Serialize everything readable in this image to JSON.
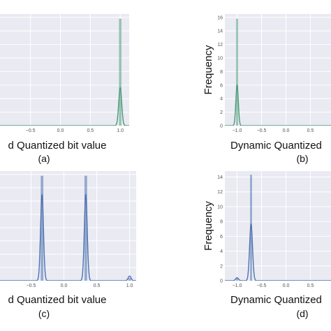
{
  "chart_data": [
    {
      "type": "bar",
      "panel": "a",
      "caption": "(a)",
      "xlabel": "d Quantized bit value",
      "ylabel": "",
      "xlim": [
        -1.15,
        1.15
      ],
      "ylim": [
        0,
        16.5
      ],
      "xticks": [
        -0.5,
        0.0,
        0.5,
        1.0
      ],
      "xtick_labels": [
        "−0.5",
        "0.0",
        "0.5",
        "1.0"
      ],
      "yticks": [],
      "ytick_labels": [],
      "color": "#4a9a78",
      "grid": true,
      "histogram": [
        {
          "x": 1.0,
          "height": 15.8,
          "width": 0.04
        }
      ],
      "kde": {
        "peaks": [
          {
            "center": 1.0,
            "height": 5.6,
            "width": 0.025
          }
        ]
      }
    },
    {
      "type": "bar",
      "panel": "b",
      "caption": "(b)",
      "xlabel": "Dynamic Quantized",
      "ylabel": "Frequency",
      "xlim": [
        -1.25,
        1.15
      ],
      "ylim": [
        0,
        16.5
      ],
      "xticks": [
        -1.0,
        -0.5,
        0.0,
        0.5
      ],
      "xtick_labels": [
        "−1.0",
        "−0.5",
        "0.0",
        "0.5"
      ],
      "yticks": [
        0,
        2,
        4,
        6,
        8,
        10,
        12,
        14,
        16
      ],
      "ytick_labels": [
        "0",
        "2",
        "4",
        "6",
        "8",
        "10",
        "12",
        "14",
        "16"
      ],
      "color": "#4a9a78",
      "grid": true,
      "histogram": [
        {
          "x": -1.0,
          "height": 15.8,
          "width": 0.04
        }
      ],
      "kde": {
        "peaks": [
          {
            "center": -1.0,
            "height": 6.0,
            "width": 0.025
          }
        ]
      }
    },
    {
      "type": "bar",
      "panel": "c",
      "caption": "(c)",
      "xlabel": "d Quantized bit value",
      "ylabel": "",
      "xlim": [
        -1.1,
        1.1
      ],
      "ylim": [
        0,
        16.5
      ],
      "xticks": [
        -0.5,
        0.0,
        0.5,
        1.0
      ],
      "xtick_labels": [
        "−0.5",
        "0.0",
        "0.5",
        "1.0"
      ],
      "yticks": [],
      "ytick_labels": [],
      "color": "#4c72b0",
      "grid": true,
      "histogram": [
        {
          "x": -0.333,
          "height": 15.8,
          "width": 0.04
        },
        {
          "x": 0.333,
          "height": 15.8,
          "width": 0.04
        },
        {
          "x": 1.0,
          "height": 0.4,
          "width": 0.04
        }
      ],
      "kde": {
        "peaks": [
          {
            "center": -0.333,
            "height": 13.0,
            "width": 0.022
          },
          {
            "center": 0.333,
            "height": 13.0,
            "width": 0.022
          },
          {
            "center": 1.0,
            "height": 0.7,
            "width": 0.022
          }
        ]
      }
    },
    {
      "type": "bar",
      "panel": "d",
      "caption": "(d)",
      "xlabel": "Dynamic Quantized",
      "ylabel": "Frequency",
      "xlim": [
        -1.25,
        1.15
      ],
      "ylim": [
        0,
        14.8
      ],
      "xticks": [
        -1.0,
        -0.5,
        0.0,
        0.5
      ],
      "xtick_labels": [
        "−1.0",
        "−0.5",
        "0.0",
        "0.5"
      ],
      "yticks": [
        0,
        2,
        4,
        6,
        8,
        10,
        12,
        14
      ],
      "ytick_labels": [
        "0",
        "2",
        "4",
        "6",
        "8",
        "10",
        "12",
        "14"
      ],
      "color": "#4c72b0",
      "grid": true,
      "histogram": [
        {
          "x": -0.714,
          "height": 14.3,
          "width": 0.04
        },
        {
          "x": -1.0,
          "height": 0.3,
          "width": 0.04
        }
      ],
      "kde": {
        "peaks": [
          {
            "center": -0.714,
            "height": 7.6,
            "width": 0.03
          },
          {
            "center": -1.0,
            "height": 0.4,
            "width": 0.03
          }
        ]
      }
    }
  ]
}
